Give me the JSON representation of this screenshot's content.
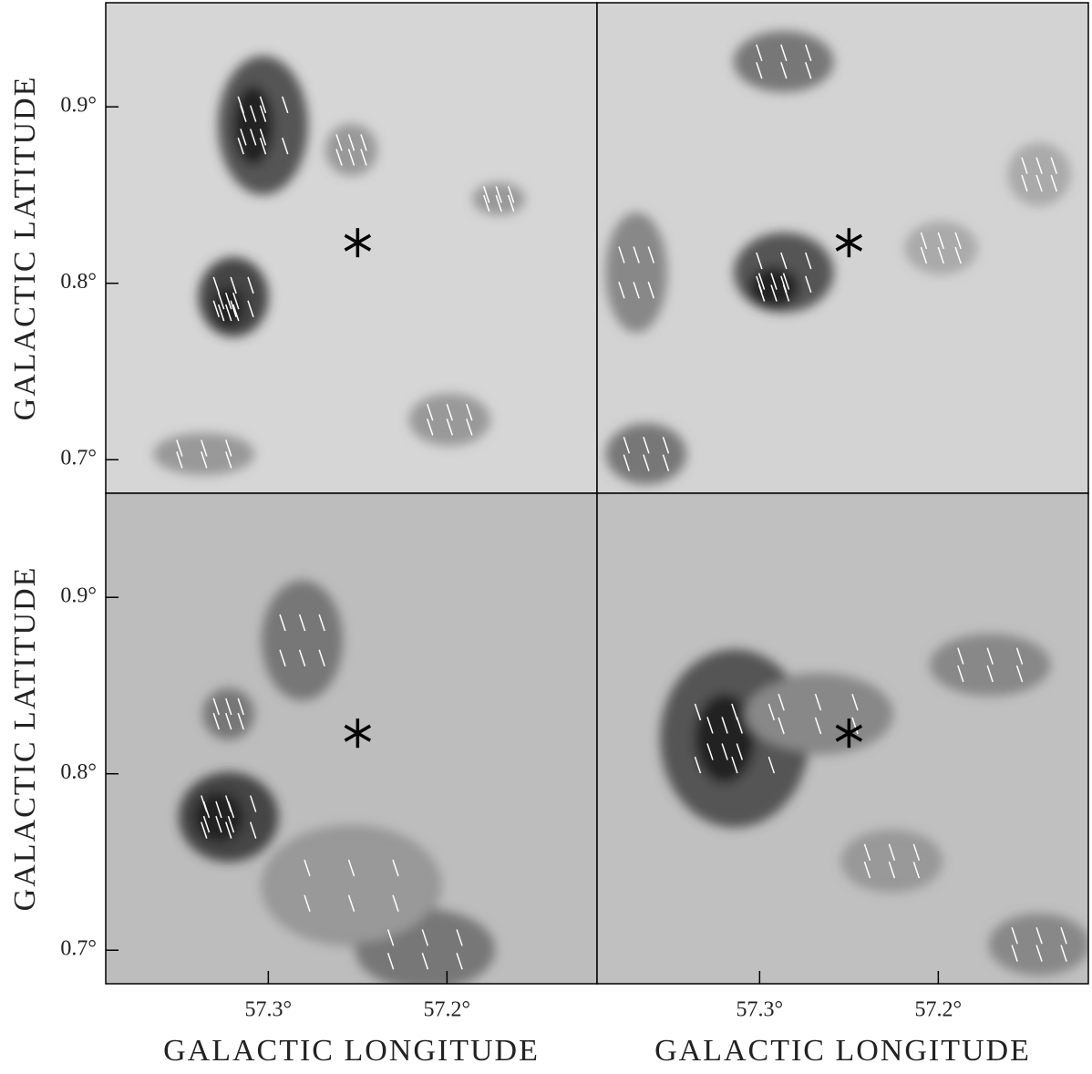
{
  "chart_data": [
    {
      "type": "contour",
      "ylabel": "GALACTIC LATITUDE",
      "xlim": [
        57.391,
        57.116
      ],
      "ylim": [
        0.681,
        0.959
      ],
      "yticks": [
        {
          "value": 0.7,
          "label": "0.7°"
        },
        {
          "value": 0.8,
          "label": "0.8°"
        },
        {
          "value": 0.9,
          "label": "0.9°"
        }
      ],
      "marker": {
        "x": 57.25,
        "y": 0.823
      }
    },
    {
      "type": "contour",
      "xlim": [
        57.391,
        57.116
      ],
      "ylim": [
        0.681,
        0.959
      ],
      "marker": {
        "x": 57.25,
        "y": 0.823
      }
    },
    {
      "type": "contour",
      "ylabel": "GALACTIC LATITUDE",
      "xlabel": "GALACTIC LONGITUDE",
      "xlim": [
        57.391,
        57.116
      ],
      "ylim": [
        0.681,
        0.959
      ],
      "xticks": [
        {
          "value": 57.3,
          "label": "57.3°"
        },
        {
          "value": 57.2,
          "label": "57.2°"
        }
      ],
      "yticks": [
        {
          "value": 0.7,
          "label": "0.7°"
        },
        {
          "value": 0.8,
          "label": "0.8°"
        },
        {
          "value": 0.9,
          "label": "0.9°"
        }
      ],
      "marker": {
        "x": 57.25,
        "y": 0.823
      }
    },
    {
      "type": "contour",
      "xlabel": "GALACTIC LONGITUDE",
      "xlim": [
        57.391,
        57.116
      ],
      "ylim": [
        0.681,
        0.959
      ],
      "xticks": [
        {
          "value": 57.3,
          "label": "57.3°"
        },
        {
          "value": 57.2,
          "label": "57.2°"
        }
      ],
      "marker": {
        "x": 57.25,
        "y": 0.823
      }
    }
  ]
}
